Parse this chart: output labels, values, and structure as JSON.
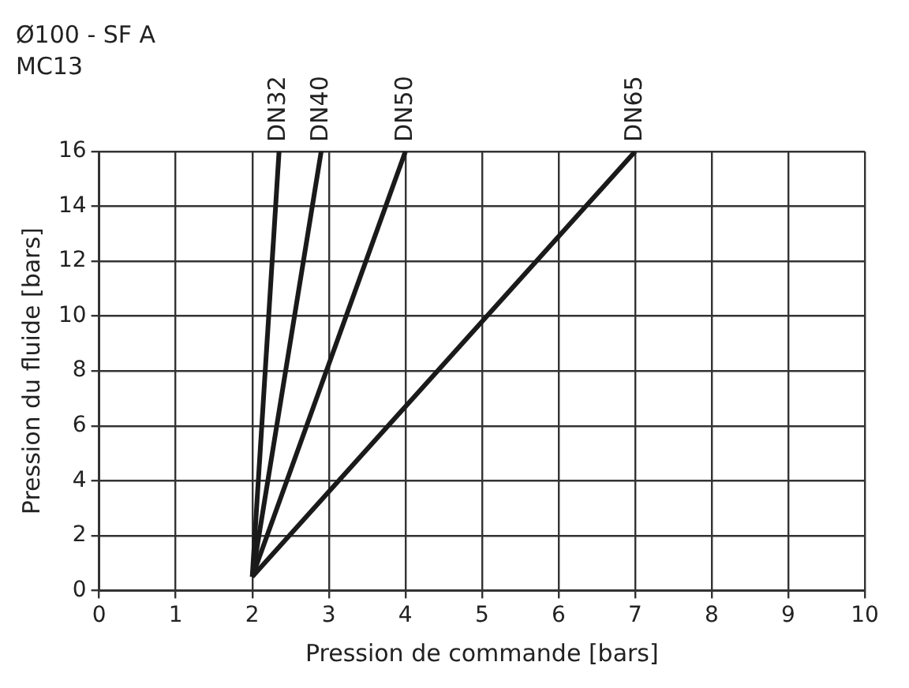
{
  "chart_data": {
    "type": "line",
    "title": "Ø100 - SF A",
    "subtitle": "MC13",
    "xlabel": "Pression de commande [bars]",
    "ylabel": "Pression du fluide [bars]",
    "series": [
      {
        "name": "DN32",
        "color": "#1a1a1a",
        "x": [
          2,
          2.35
        ],
        "values": [
          0.5,
          16
        ]
      },
      {
        "name": "DN40",
        "color": "#1a1a1a",
        "x": [
          2,
          2.9
        ],
        "values": [
          0.5,
          16
        ]
      },
      {
        "name": "DN50",
        "color": "#1a1a1a",
        "x": [
          2,
          4
        ],
        "values": [
          0.5,
          16
        ]
      },
      {
        "name": "DN65",
        "color": "#1a1a1a",
        "x": [
          2,
          7
        ],
        "values": [
          0.5,
          16
        ]
      }
    ],
    "xlim": [
      0,
      10
    ],
    "xticks": [
      0,
      1,
      2,
      3,
      4,
      5,
      6,
      7,
      8,
      9,
      10
    ],
    "ylim": [
      0,
      16
    ],
    "yticks": [
      0,
      2,
      4,
      6,
      8,
      10,
      12,
      14,
      16
    ],
    "grid": true,
    "legend": false,
    "marker": "none",
    "line_style": "solid"
  }
}
